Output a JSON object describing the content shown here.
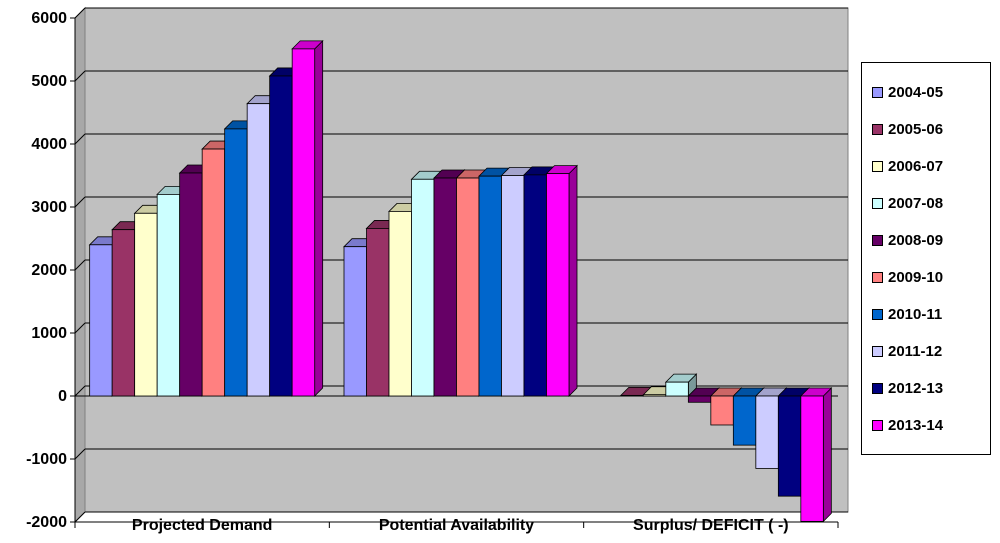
{
  "chart_data": {
    "type": "bar",
    "categories": [
      "Projected Demand",
      "Potential Availability",
      "Surplus/ DEFICIT ( -)"
    ],
    "series": [
      {
        "name": "2004-05",
        "color": "#9999FF",
        "values": [
          2400,
          2370,
          0
        ]
      },
      {
        "name": "2005-06",
        "color": "#993366",
        "values": [
          2640,
          2660,
          10
        ]
      },
      {
        "name": "2006-07",
        "color": "#FFFFCC",
        "values": [
          2900,
          2930,
          20
        ]
      },
      {
        "name": "2007-08",
        "color": "#CCFFFF",
        "values": [
          3200,
          3440,
          220
        ]
      },
      {
        "name": "2008-09",
        "color": "#660066",
        "values": [
          3540,
          3460,
          -100
        ]
      },
      {
        "name": "2009-10",
        "color": "#FF8080",
        "values": [
          3920,
          3460,
          -460
        ]
      },
      {
        "name": "2010-11",
        "color": "#0066CC",
        "values": [
          4240,
          3490,
          -780
        ]
      },
      {
        "name": "2011-12",
        "color": "#CCCCFF",
        "values": [
          4640,
          3500,
          -1150
        ]
      },
      {
        "name": "2012-13",
        "color": "#000080",
        "values": [
          5080,
          3510,
          -1590
        ]
      },
      {
        "name": "2013-14",
        "color": "#FF00FF",
        "values": [
          5510,
          3530,
          -1990
        ]
      }
    ],
    "ylim": [
      -2000,
      6000
    ],
    "yticks": [
      "6000",
      "5000",
      "4000",
      "3000",
      "2000",
      "1000",
      "0",
      "-1000",
      "-2000"
    ],
    "grid": true,
    "plot_background": "#C0C0C0",
    "legend_position": "right",
    "three_d": true
  }
}
